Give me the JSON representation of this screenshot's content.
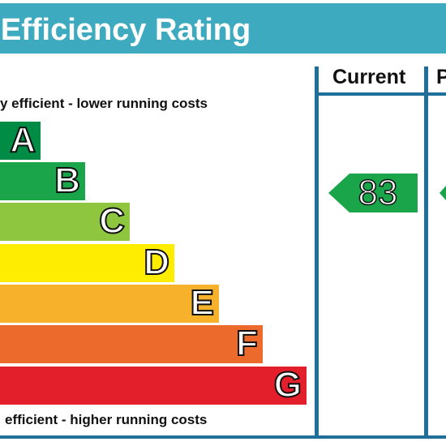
{
  "title": "gy Efficiency Rating",
  "columns": {
    "current": "Current",
    "potential": "P"
  },
  "captions": {
    "top": "y efficient - lower running costs",
    "bottom": "efficient - higher running costs"
  },
  "bands": [
    {
      "letter": "A",
      "color": "#008c45"
    },
    {
      "letter": "B",
      "color": "#1aa54a"
    },
    {
      "letter": "C",
      "color": "#8fc640"
    },
    {
      "letter": "D",
      "color": "#ffed00"
    },
    {
      "letter": "E",
      "color": "#f7b12a"
    },
    {
      "letter": "F",
      "color": "#ec6a2c"
    },
    {
      "letter": "G",
      "color": "#e21f2b"
    }
  ],
  "current_rating": {
    "value": "83",
    "color": "#1aa54a"
  },
  "potential_rating": {
    "color": "#1aa54a"
  },
  "colors": {
    "title_bar": "#3eaabf",
    "frame": "#1f6f9a"
  }
}
